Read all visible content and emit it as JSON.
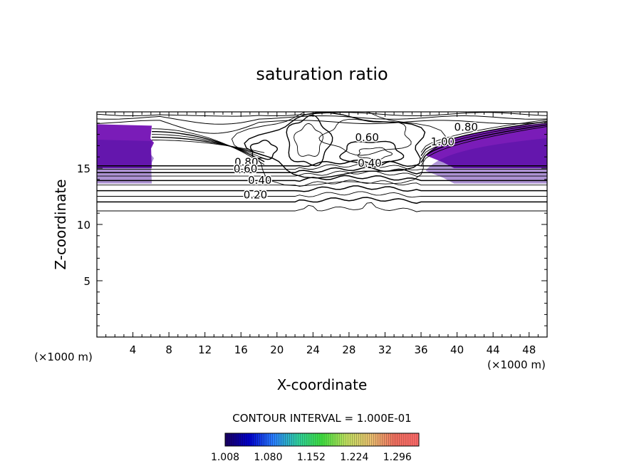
{
  "chart_data": {
    "type": "contour",
    "title": "saturation ratio",
    "xlabel": "X-coordinate",
    "ylabel": "Z-coordinate",
    "x_unit_label_left": "(×1000 m)",
    "x_unit_label_right": "(×1000 m)",
    "xlim": [
      0,
      50
    ],
    "ylim": [
      0,
      20
    ],
    "x_ticks": [
      4,
      8,
      12,
      16,
      20,
      24,
      28,
      32,
      36,
      40,
      44,
      48
    ],
    "x_tick_labels": [
      "4",
      "8",
      "12",
      "16",
      "20",
      "24",
      "28",
      "32",
      "36",
      "40",
      "44",
      "48"
    ],
    "y_ticks": [
      5,
      10,
      15
    ],
    "y_tick_labels": [
      "5",
      "10",
      "15"
    ],
    "contour_interval_text": "CONTOUR INTERVAL = 1.000E-01",
    "contour_labels": [
      {
        "text": "0.80",
        "x": 16.6,
        "z": 15.5
      },
      {
        "text": "0.60",
        "x": 16.5,
        "z": 14.9
      },
      {
        "text": "0.40",
        "x": 18.1,
        "z": 13.9
      },
      {
        "text": "0.20",
        "x": 17.6,
        "z": 12.6
      },
      {
        "text": "0.60",
        "x": 30.0,
        "z": 17.7
      },
      {
        "text": "0.40",
        "x": 30.3,
        "z": 15.4
      },
      {
        "text": "1.00",
        "x": 38.4,
        "z": 17.3
      },
      {
        "text": "0.80",
        "x": 41.0,
        "z": 18.6
      }
    ],
    "contour_levels_drawn": [
      0.1,
      0.2,
      0.3,
      0.4,
      0.5,
      0.6,
      0.7,
      0.8,
      0.9,
      1.0
    ],
    "shaded_regions": [
      {
        "name": "supersaturated-left",
        "x_range": [
          0,
          6.1
        ],
        "z_range": [
          15.0,
          18.9
        ],
        "approx_value": 1.02
      },
      {
        "name": "supersaturated-right",
        "x_range": [
          36.5,
          50
        ],
        "z_range": [
          15.0,
          18.9
        ],
        "approx_value": 1.03
      }
    ],
    "colorbar": {
      "min": 1.008,
      "max": 1.332,
      "tick_labels": [
        "1.008",
        "1.080",
        "1.152",
        "1.224",
        "1.296"
      ],
      "colormap": [
        "#1a0060",
        "#0000cc",
        "#2a7fff",
        "#30d0a0",
        "#40e040",
        "#c0e060",
        "#e8c070",
        "#f07060",
        "#ff6a6a"
      ]
    },
    "colors": {
      "fill_dark": "#4a10a0",
      "fill_mid": "#7a1cb8",
      "fill_light": "#6030c0",
      "line": "#000000"
    }
  }
}
